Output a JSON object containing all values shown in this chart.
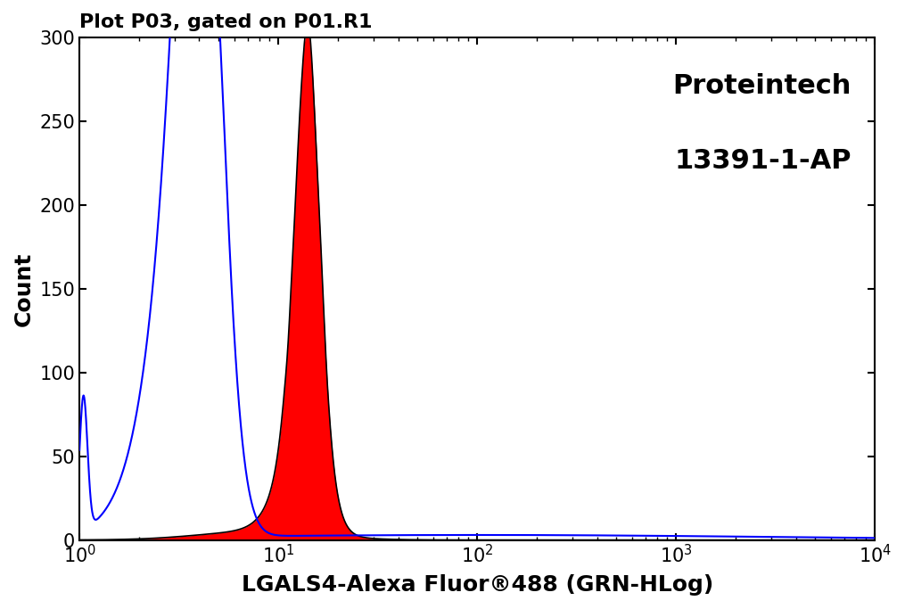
{
  "title": "Plot P03, gated on P01.R1",
  "xlabel": "LGALS4-Alexa Fluor®488 (GRN-HLog)",
  "ylabel": "Count",
  "brand_line1": "Proteintech",
  "brand_line2": "13391-1-AP",
  "xlim_log": [
    0,
    4
  ],
  "ylim": [
    0,
    300
  ],
  "yticks": [
    0,
    50,
    100,
    150,
    200,
    250,
    300
  ],
  "background_color": "#ffffff",
  "blue_color": "#0000ff",
  "red_color": "#ff0000",
  "black_color": "#000000",
  "title_fontsize": 16,
  "label_fontsize": 18,
  "brand_fontsize": 22,
  "tick_fontsize": 15
}
